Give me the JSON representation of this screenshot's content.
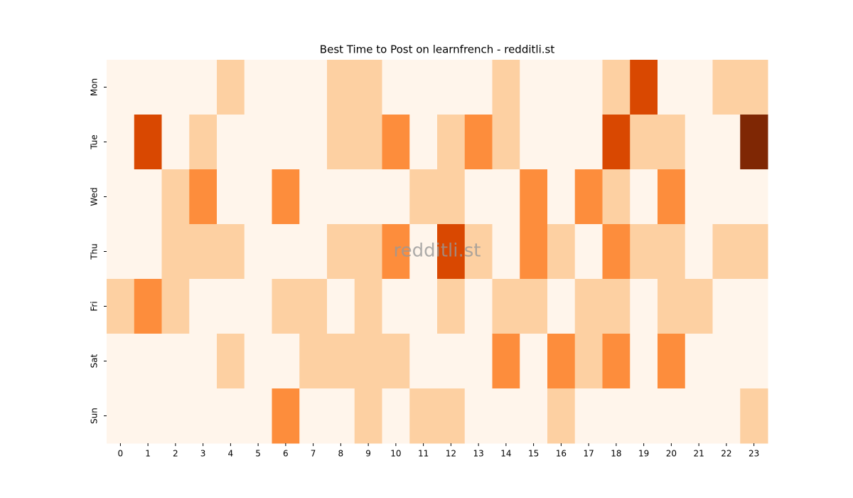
{
  "chart_data": {
    "type": "heatmap",
    "title": "Best Time to Post on learnfrench - redditli.st",
    "watermark": "redditli.st",
    "x": [
      0,
      1,
      2,
      3,
      4,
      5,
      6,
      7,
      8,
      9,
      10,
      11,
      12,
      13,
      14,
      15,
      16,
      17,
      18,
      19,
      20,
      21,
      22,
      23
    ],
    "y": [
      "Mon",
      "Tue",
      "Wed",
      "Thu",
      "Fri",
      "Sat",
      "Sun"
    ],
    "colors": [
      "#fff5eb",
      "#fdd0a2",
      "#fd8d3c",
      "#d94801",
      "#7f2704"
    ],
    "values": [
      [
        0,
        0,
        0,
        0,
        1,
        0,
        0,
        0,
        1,
        1,
        0,
        0,
        0,
        0,
        1,
        0,
        0,
        0,
        1,
        3,
        0,
        0,
        1,
        1
      ],
      [
        0,
        3,
        0,
        1,
        0,
        0,
        0,
        0,
        1,
        1,
        2,
        0,
        1,
        2,
        1,
        0,
        0,
        0,
        3,
        1,
        1,
        0,
        0,
        4
      ],
      [
        0,
        0,
        1,
        2,
        0,
        0,
        2,
        0,
        0,
        0,
        0,
        1,
        1,
        0,
        0,
        2,
        0,
        2,
        1,
        0,
        2,
        0,
        0,
        0
      ],
      [
        0,
        0,
        1,
        1,
        1,
        0,
        0,
        0,
        1,
        1,
        2,
        0,
        3,
        1,
        0,
        2,
        1,
        0,
        2,
        1,
        1,
        0,
        1,
        1
      ],
      [
        1,
        2,
        1,
        0,
        0,
        0,
        1,
        1,
        0,
        1,
        0,
        0,
        1,
        0,
        1,
        1,
        0,
        1,
        1,
        0,
        1,
        1,
        0,
        0
      ],
      [
        0,
        0,
        0,
        0,
        1,
        0,
        0,
        1,
        1,
        1,
        1,
        0,
        0,
        0,
        2,
        0,
        2,
        1,
        2,
        0,
        2,
        0,
        0,
        0
      ],
      [
        0,
        0,
        0,
        0,
        0,
        0,
        2,
        0,
        0,
        1,
        0,
        1,
        1,
        0,
        0,
        0,
        1,
        0,
        0,
        0,
        0,
        0,
        0,
        1
      ]
    ]
  }
}
